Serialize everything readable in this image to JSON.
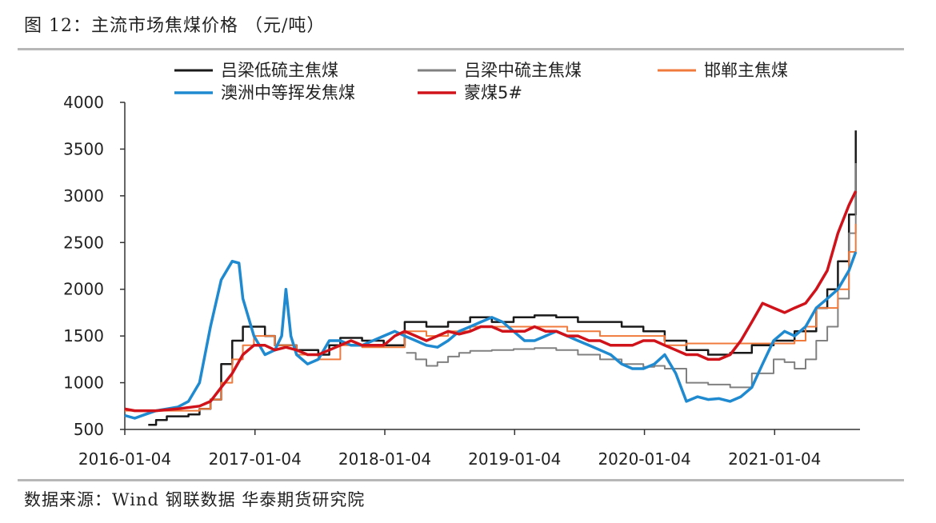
{
  "header": {
    "title": "图 12：主流市场焦煤价格  （元/吨）"
  },
  "footer": {
    "source": "数据来源：Wind 钢联数据 华泰期货研究院"
  },
  "chart_data": {
    "type": "line",
    "title": "图 12：主流市场焦煤价格  （元/吨）",
    "xlabel": "",
    "ylabel": "",
    "ylim": [
      500,
      4000
    ],
    "yticks": [
      500,
      1000,
      1500,
      2000,
      2500,
      3000,
      3500,
      4000
    ],
    "xticks": [
      "2016-01-04",
      "2017-01-04",
      "2018-01-04",
      "2019-01-04",
      "2020-01-04",
      "2021-01-04"
    ],
    "xlim": [
      "2016-01-04",
      "2021-09-01"
    ],
    "grid": false,
    "legend": "top",
    "series": [
      {
        "name": "吕梁低硫主焦煤",
        "color": "#1a1a1a",
        "width": 2.5,
        "step": true,
        "points": [
          [
            "2016-03-10",
            550
          ],
          [
            "2016-04-01",
            600
          ],
          [
            "2016-05-01",
            640
          ],
          [
            "2016-07-01",
            660
          ],
          [
            "2016-08-01",
            720
          ],
          [
            "2016-09-01",
            820
          ],
          [
            "2016-10-01",
            1200
          ],
          [
            "2016-11-01",
            1450
          ],
          [
            "2016-12-01",
            1600
          ],
          [
            "2017-02-01",
            1500
          ],
          [
            "2017-03-01",
            1400
          ],
          [
            "2017-05-01",
            1350
          ],
          [
            "2017-07-01",
            1300
          ],
          [
            "2017-08-01",
            1400
          ],
          [
            "2017-09-01",
            1480
          ],
          [
            "2017-11-01",
            1450
          ],
          [
            "2018-01-01",
            1400
          ],
          [
            "2018-03-01",
            1650
          ],
          [
            "2018-05-01",
            1600
          ],
          [
            "2018-07-01",
            1650
          ],
          [
            "2018-09-01",
            1700
          ],
          [
            "2018-11-01",
            1650
          ],
          [
            "2019-01-01",
            1700
          ],
          [
            "2019-03-01",
            1720
          ],
          [
            "2019-05-01",
            1700
          ],
          [
            "2019-07-01",
            1650
          ],
          [
            "2019-09-01",
            1650
          ],
          [
            "2019-11-01",
            1600
          ],
          [
            "2020-01-01",
            1550
          ],
          [
            "2020-03-01",
            1450
          ],
          [
            "2020-05-01",
            1350
          ],
          [
            "2020-07-01",
            1300
          ],
          [
            "2020-09-01",
            1320
          ],
          [
            "2020-11-01",
            1400
          ],
          [
            "2021-01-01",
            1450
          ],
          [
            "2021-03-01",
            1550
          ],
          [
            "2021-05-01",
            1800
          ],
          [
            "2021-06-01",
            2000
          ],
          [
            "2021-07-01",
            2300
          ],
          [
            "2021-08-01",
            2800
          ],
          [
            "2021-08-20",
            3700
          ]
        ]
      },
      {
        "name": "吕梁中硫主焦煤",
        "color": "#808080",
        "width": 2,
        "step": true,
        "points": [
          [
            "2018-03-05",
            1320
          ],
          [
            "2018-04-01",
            1250
          ],
          [
            "2018-05-01",
            1180
          ],
          [
            "2018-06-01",
            1220
          ],
          [
            "2018-07-01",
            1280
          ],
          [
            "2018-08-01",
            1320
          ],
          [
            "2018-09-01",
            1340
          ],
          [
            "2018-11-01",
            1350
          ],
          [
            "2019-01-01",
            1360
          ],
          [
            "2019-03-01",
            1370
          ],
          [
            "2019-05-01",
            1350
          ],
          [
            "2019-07-01",
            1300
          ],
          [
            "2019-09-01",
            1250
          ],
          [
            "2019-11-01",
            1200
          ],
          [
            "2020-01-01",
            1170
          ],
          [
            "2020-02-01",
            1180
          ],
          [
            "2020-03-01",
            1150
          ],
          [
            "2020-05-01",
            1000
          ],
          [
            "2020-07-01",
            980
          ],
          [
            "2020-09-01",
            950
          ],
          [
            "2020-11-01",
            1100
          ],
          [
            "2021-01-01",
            1250
          ],
          [
            "2021-02-01",
            1220
          ],
          [
            "2021-03-01",
            1150
          ],
          [
            "2021-04-01",
            1250
          ],
          [
            "2021-05-01",
            1450
          ],
          [
            "2021-06-01",
            1600
          ],
          [
            "2021-07-01",
            1900
          ],
          [
            "2021-08-01",
            2600
          ],
          [
            "2021-08-20",
            3350
          ]
        ]
      },
      {
        "name": "邯郸主焦煤",
        "color": "#f07a3c",
        "width": 2,
        "step": true,
        "points": [
          [
            "2016-01-04",
            700
          ],
          [
            "2016-06-01",
            700
          ],
          [
            "2016-08-01",
            720
          ],
          [
            "2016-09-01",
            820
          ],
          [
            "2016-10-01",
            1000
          ],
          [
            "2016-11-01",
            1250
          ],
          [
            "2016-12-01",
            1400
          ],
          [
            "2017-01-01",
            1500
          ],
          [
            "2017-03-01",
            1400
          ],
          [
            "2017-05-01",
            1300
          ],
          [
            "2017-07-01",
            1250
          ],
          [
            "2017-09-01",
            1400
          ],
          [
            "2017-11-01",
            1380
          ],
          [
            "2018-01-01",
            1380
          ],
          [
            "2018-03-01",
            1550
          ],
          [
            "2018-05-01",
            1500
          ],
          [
            "2018-07-01",
            1550
          ],
          [
            "2018-09-01",
            1600
          ],
          [
            "2019-01-01",
            1600
          ],
          [
            "2019-06-01",
            1550
          ],
          [
            "2019-09-01",
            1500
          ],
          [
            "2020-01-01",
            1500
          ],
          [
            "2020-03-01",
            1400
          ],
          [
            "2020-05-01",
            1420
          ],
          [
            "2020-09-01",
            1420
          ],
          [
            "2020-11-01",
            1420
          ],
          [
            "2021-01-01",
            1420
          ],
          [
            "2021-03-01",
            1450
          ],
          [
            "2021-04-01",
            1600
          ],
          [
            "2021-05-01",
            1800
          ],
          [
            "2021-07-01",
            2000
          ],
          [
            "2021-08-01",
            2400
          ],
          [
            "2021-08-20",
            2700
          ]
        ]
      },
      {
        "name": "澳洲中等挥发焦煤",
        "color": "#1f8ad0",
        "width": 3.5,
        "step": false,
        "points": [
          [
            "2016-01-04",
            650
          ],
          [
            "2016-02-01",
            620
          ],
          [
            "2016-03-01",
            660
          ],
          [
            "2016-04-01",
            700
          ],
          [
            "2016-05-01",
            720
          ],
          [
            "2016-06-01",
            740
          ],
          [
            "2016-07-01",
            800
          ],
          [
            "2016-08-01",
            1000
          ],
          [
            "2016-09-01",
            1600
          ],
          [
            "2016-10-01",
            2100
          ],
          [
            "2016-11-01",
            2300
          ],
          [
            "2016-11-20",
            2280
          ],
          [
            "2016-12-01",
            1900
          ],
          [
            "2017-01-01",
            1500
          ],
          [
            "2017-02-01",
            1300
          ],
          [
            "2017-03-01",
            1350
          ],
          [
            "2017-03-20",
            1500
          ],
          [
            "2017-04-01",
            2000
          ],
          [
            "2017-04-15",
            1500
          ],
          [
            "2017-05-01",
            1300
          ],
          [
            "2017-06-01",
            1200
          ],
          [
            "2017-07-01",
            1250
          ],
          [
            "2017-08-01",
            1450
          ],
          [
            "2017-09-01",
            1450
          ],
          [
            "2017-10-01",
            1400
          ],
          [
            "2017-11-01",
            1400
          ],
          [
            "2018-01-01",
            1500
          ],
          [
            "2018-02-01",
            1550
          ],
          [
            "2018-03-01",
            1500
          ],
          [
            "2018-04-01",
            1450
          ],
          [
            "2018-05-01",
            1400
          ],
          [
            "2018-06-01",
            1380
          ],
          [
            "2018-07-01",
            1450
          ],
          [
            "2018-08-01",
            1550
          ],
          [
            "2018-09-01",
            1600
          ],
          [
            "2018-10-01",
            1650
          ],
          [
            "2018-11-01",
            1700
          ],
          [
            "2018-12-01",
            1650
          ],
          [
            "2019-01-01",
            1550
          ],
          [
            "2019-02-01",
            1450
          ],
          [
            "2019-03-01",
            1450
          ],
          [
            "2019-04-01",
            1500
          ],
          [
            "2019-05-01",
            1550
          ],
          [
            "2019-06-01",
            1500
          ],
          [
            "2019-07-01",
            1450
          ],
          [
            "2019-08-01",
            1400
          ],
          [
            "2019-09-01",
            1350
          ],
          [
            "2019-10-01",
            1300
          ],
          [
            "2019-11-01",
            1200
          ],
          [
            "2019-12-01",
            1150
          ],
          [
            "2020-01-01",
            1150
          ],
          [
            "2020-02-01",
            1200
          ],
          [
            "2020-03-01",
            1300
          ],
          [
            "2020-04-01",
            1100
          ],
          [
            "2020-05-01",
            800
          ],
          [
            "2020-06-01",
            850
          ],
          [
            "2020-07-01",
            820
          ],
          [
            "2020-08-01",
            830
          ],
          [
            "2020-09-01",
            800
          ],
          [
            "2020-10-01",
            850
          ],
          [
            "2020-11-01",
            950
          ],
          [
            "2020-12-01",
            1200
          ],
          [
            "2021-01-01",
            1450
          ],
          [
            "2021-02-01",
            1550
          ],
          [
            "2021-03-01",
            1500
          ],
          [
            "2021-04-01",
            1600
          ],
          [
            "2021-05-01",
            1800
          ],
          [
            "2021-06-01",
            1900
          ],
          [
            "2021-07-01",
            2000
          ],
          [
            "2021-08-01",
            2200
          ],
          [
            "2021-08-20",
            2400
          ]
        ]
      },
      {
        "name": "蒙煤5#",
        "color": "#d0121b",
        "width": 3.5,
        "step": false,
        "points": [
          [
            "2016-01-04",
            720
          ],
          [
            "2016-02-01",
            700
          ],
          [
            "2016-04-01",
            700
          ],
          [
            "2016-06-01",
            720
          ],
          [
            "2016-08-01",
            750
          ],
          [
            "2016-09-01",
            800
          ],
          [
            "2016-10-01",
            950
          ],
          [
            "2016-11-01",
            1100
          ],
          [
            "2016-12-01",
            1300
          ],
          [
            "2017-01-01",
            1400
          ],
          [
            "2017-02-01",
            1400
          ],
          [
            "2017-03-01",
            1350
          ],
          [
            "2017-04-01",
            1380
          ],
          [
            "2017-05-01",
            1350
          ],
          [
            "2017-06-01",
            1300
          ],
          [
            "2017-07-01",
            1300
          ],
          [
            "2017-08-01",
            1350
          ],
          [
            "2017-09-01",
            1400
          ],
          [
            "2017-10-01",
            1450
          ],
          [
            "2017-11-01",
            1400
          ],
          [
            "2017-12-01",
            1400
          ],
          [
            "2018-01-01",
            1400
          ],
          [
            "2018-02-01",
            1500
          ],
          [
            "2018-03-01",
            1550
          ],
          [
            "2018-04-01",
            1500
          ],
          [
            "2018-05-01",
            1450
          ],
          [
            "2018-06-01",
            1500
          ],
          [
            "2018-07-01",
            1550
          ],
          [
            "2018-08-01",
            1520
          ],
          [
            "2018-09-01",
            1550
          ],
          [
            "2018-10-01",
            1600
          ],
          [
            "2018-11-01",
            1600
          ],
          [
            "2018-12-01",
            1550
          ],
          [
            "2019-01-01",
            1550
          ],
          [
            "2019-02-01",
            1550
          ],
          [
            "2019-03-01",
            1600
          ],
          [
            "2019-04-01",
            1550
          ],
          [
            "2019-05-01",
            1550
          ],
          [
            "2019-06-01",
            1500
          ],
          [
            "2019-07-01",
            1500
          ],
          [
            "2019-08-01",
            1450
          ],
          [
            "2019-09-01",
            1450
          ],
          [
            "2019-10-01",
            1400
          ],
          [
            "2019-11-01",
            1400
          ],
          [
            "2019-12-01",
            1400
          ],
          [
            "2020-01-01",
            1450
          ],
          [
            "2020-02-01",
            1450
          ],
          [
            "2020-03-01",
            1400
          ],
          [
            "2020-04-01",
            1350
          ],
          [
            "2020-05-01",
            1300
          ],
          [
            "2020-06-01",
            1300
          ],
          [
            "2020-07-01",
            1250
          ],
          [
            "2020-08-01",
            1250
          ],
          [
            "2020-09-01",
            1300
          ],
          [
            "2020-10-01",
            1450
          ],
          [
            "2020-11-01",
            1650
          ],
          [
            "2020-12-01",
            1850
          ],
          [
            "2021-01-01",
            1800
          ],
          [
            "2021-02-01",
            1750
          ],
          [
            "2021-03-01",
            1800
          ],
          [
            "2021-04-01",
            1850
          ],
          [
            "2021-05-01",
            2000
          ],
          [
            "2021-06-01",
            2200
          ],
          [
            "2021-07-01",
            2600
          ],
          [
            "2021-08-01",
            2900
          ],
          [
            "2021-08-20",
            3050
          ]
        ]
      }
    ]
  }
}
